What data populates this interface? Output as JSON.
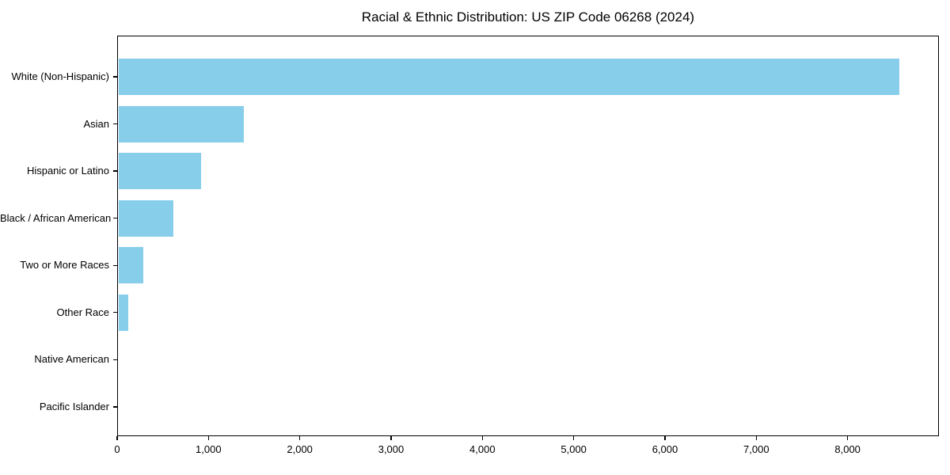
{
  "chart_data": {
    "type": "bar",
    "orientation": "horizontal",
    "title": "Racial & Ethnic Distribution: US ZIP Code 06268 (2024)",
    "categories": [
      "White (Non-Hispanic)",
      "Asian",
      "Hispanic or Latino",
      "Black / African American",
      "Two or More Races",
      "Other Race",
      "Native American",
      "Pacific Islander"
    ],
    "values": [
      8550,
      1375,
      910,
      600,
      270,
      110,
      0,
      0
    ],
    "xlabel": "",
    "ylabel": "",
    "xlim": [
      0,
      9000
    ],
    "x_ticks": [
      0,
      1000,
      2000,
      3000,
      4000,
      5000,
      6000,
      7000,
      8000
    ],
    "x_tick_labels": [
      "0",
      "1,000",
      "2,000",
      "3,000",
      "4,000",
      "5,000",
      "6,000",
      "7,000",
      "8,000"
    ],
    "bar_color": "#87CEEB",
    "background_color": "#FFFFFF",
    "grid": false,
    "legend": null
  }
}
